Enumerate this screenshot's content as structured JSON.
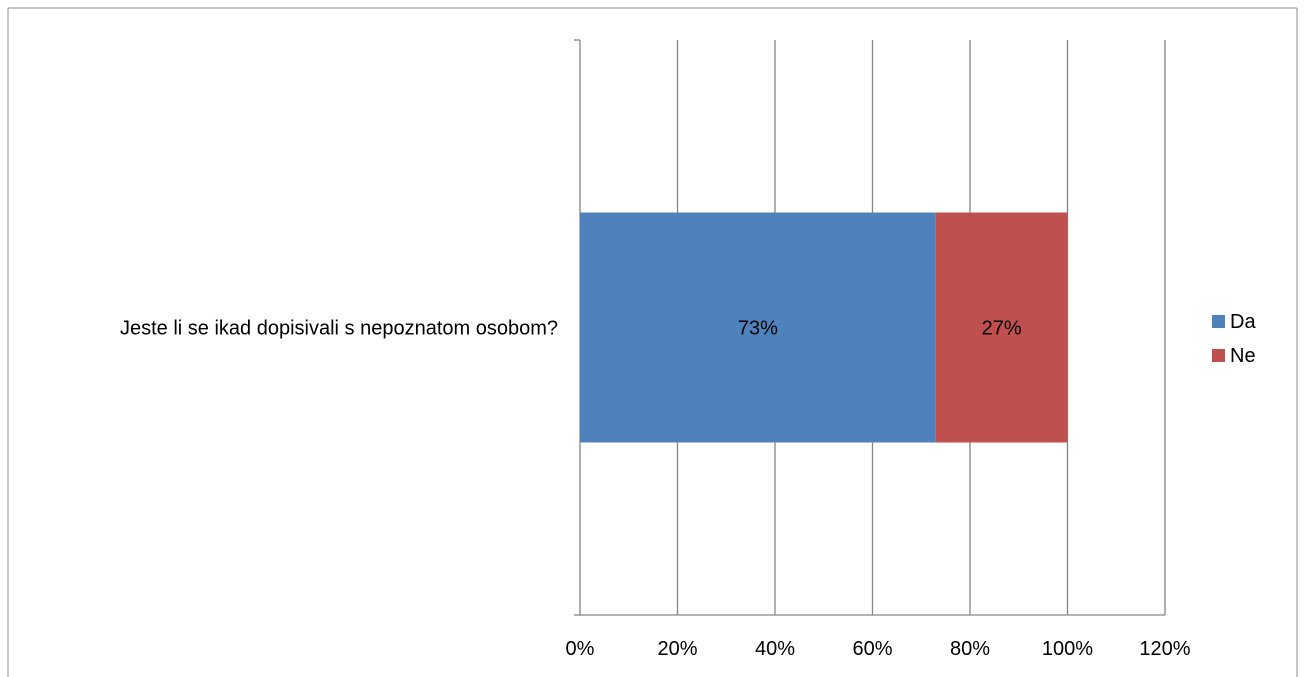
{
  "chart_data": {
    "type": "bar",
    "orientation": "horizontal",
    "stacked": true,
    "title": "",
    "xlabel": "",
    "ylabel": "",
    "categories": [
      "Jeste li se ikad dopisivali s nepoznatom osobom?"
    ],
    "series": [
      {
        "name": "Da",
        "values": [
          0.73
        ],
        "color": "#4F81BD",
        "data_labels": [
          "73%"
        ]
      },
      {
        "name": "Ne",
        "values": [
          0.27
        ],
        "color": "#C0504D",
        "data_labels": [
          "27%"
        ]
      }
    ],
    "xlim": [
      0,
      1.2
    ],
    "x_ticks": [
      0,
      0.2,
      0.4,
      0.6,
      0.8,
      1.0,
      1.2
    ],
    "x_tick_labels": [
      "0%",
      "20%",
      "40%",
      "60%",
      "80%",
      "100%",
      "120%"
    ],
    "grid": "vertical",
    "legend": {
      "position": "right",
      "items": [
        "Da",
        "Ne"
      ]
    },
    "colors": {
      "gridline": "#868686",
      "axis": "#868686",
      "text": "#000000"
    }
  }
}
